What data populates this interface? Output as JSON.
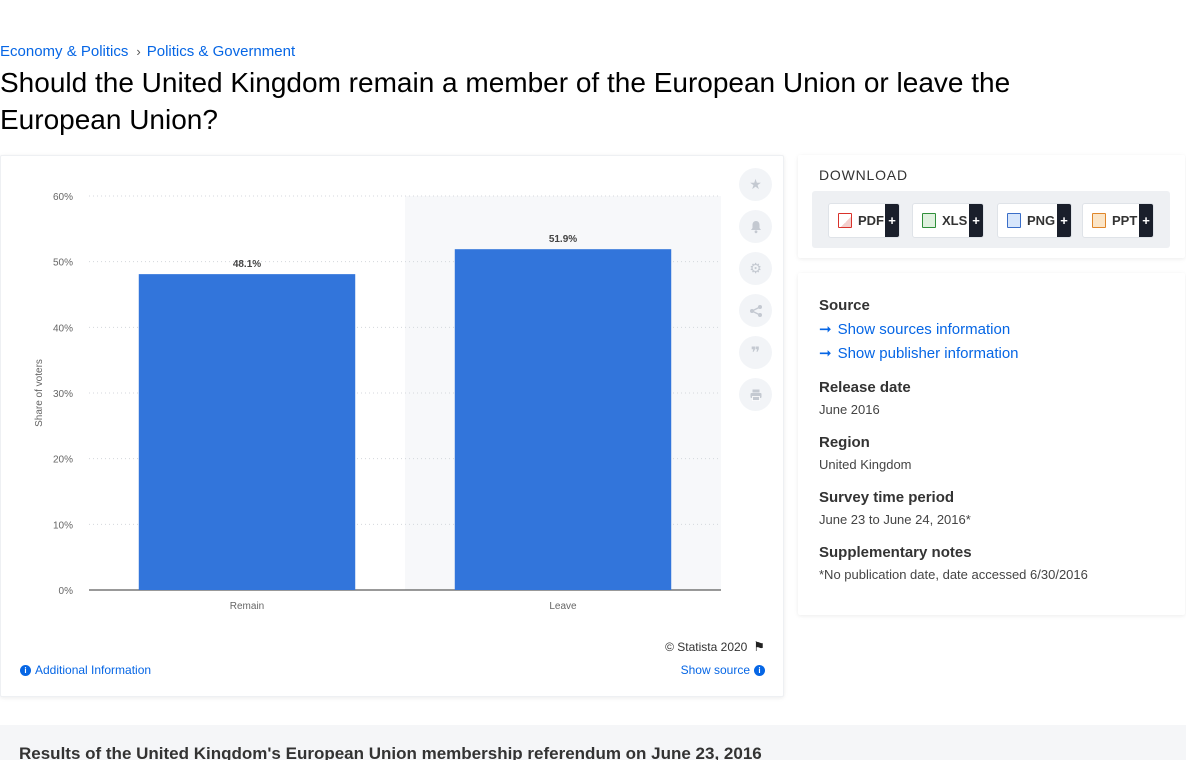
{
  "breadcrumb": {
    "item1": "Economy & Politics",
    "separator": "›",
    "item2": "Politics & Government"
  },
  "page_title": "Should the United Kingdom remain a member of the European Union or leave the European Union?",
  "chart_data": {
    "type": "bar",
    "categories": [
      "Remain",
      "Leave"
    ],
    "values": [
      48.1,
      51.9
    ],
    "value_labels": [
      "48.1%",
      "51.9%"
    ],
    "title": "",
    "xlabel": "",
    "ylabel": "Share of voters",
    "ylim": [
      0,
      60
    ],
    "yticks": [
      "0%",
      "10%",
      "20%",
      "30%",
      "40%",
      "50%",
      "60%"
    ],
    "grid": true,
    "bar_color": "#3275db",
    "highlighted_category": "Leave"
  },
  "chart_footer": {
    "copyright": "© Statista 2020",
    "additional_info": "Additional Information",
    "show_source": "Show source"
  },
  "side_tools": [
    "star-icon",
    "bell-icon",
    "gear-icon",
    "share-icon",
    "quote-icon",
    "print-icon"
  ],
  "download": {
    "title": "DOWNLOAD",
    "formats": [
      {
        "label": "PDF",
        "plus": "+"
      },
      {
        "label": "XLS",
        "plus": "+"
      },
      {
        "label": "PNG",
        "plus": "+"
      },
      {
        "label": "PPT",
        "plus": "+"
      }
    ]
  },
  "meta": {
    "source_label": "Source",
    "show_sources": "Show sources information",
    "show_publisher": "Show publisher information",
    "release_date_label": "Release date",
    "release_date": "June 2016",
    "region_label": "Region",
    "region": "United Kingdom",
    "survey_period_label": "Survey time period",
    "survey_period": "June 23 to June 24, 2016*",
    "notes_label": "Supplementary notes",
    "notes": "*No publication date, date accessed 6/30/2016"
  },
  "results_heading": "Results of the United Kingdom's European Union membership referendum on June 23, 2016"
}
